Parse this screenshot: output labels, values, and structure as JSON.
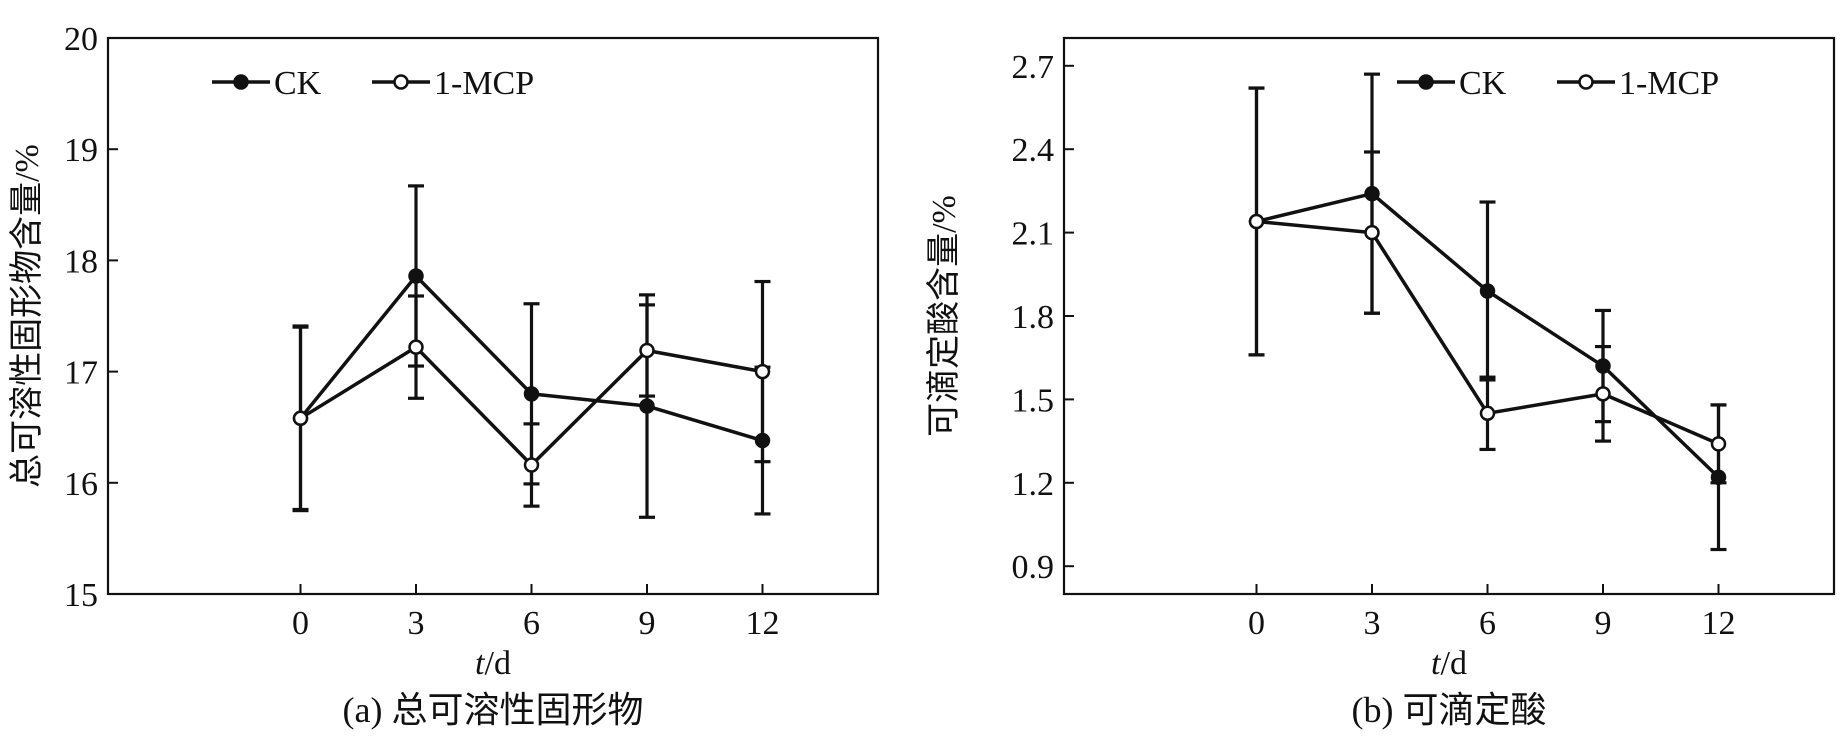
{
  "chart_data": [
    {
      "type": "line",
      "caption": "(a) 总可溶性固形物",
      "xlabel_italic": "t",
      "xlabel_rest": "/d",
      "ylabel": "总可溶性固形物含量/%",
      "x": [
        0,
        3,
        6,
        9,
        12
      ],
      "xlim": [
        -5,
        15
      ],
      "xticks": [
        "0",
        "3",
        "6",
        "9",
        "12"
      ],
      "ylim": [
        15,
        20
      ],
      "yticks": [
        "15",
        "16",
        "17",
        "18",
        "19",
        "20"
      ],
      "legend_position": "top-left",
      "series": [
        {
          "name": "CK",
          "marker": "filled",
          "values": [
            16.58,
            17.86,
            16.8,
            16.69,
            16.38
          ],
          "errors": [
            0.83,
            0.81,
            0.81,
            1.0,
            0.66
          ]
        },
        {
          "name": "1-MCP",
          "marker": "open",
          "values": [
            16.58,
            17.22,
            16.16,
            17.19,
            17.0
          ],
          "errors": [
            0.82,
            0.46,
            0.37,
            0.41,
            0.81
          ]
        }
      ]
    },
    {
      "type": "line",
      "caption": "(b) 可滴定酸",
      "xlabel_italic": "t",
      "xlabel_rest": "/d",
      "ylabel": "可滴定酸含量/%",
      "x": [
        0,
        3,
        6,
        9,
        12
      ],
      "xlim": [
        -5,
        15
      ],
      "xticks": [
        "0",
        "3",
        "6",
        "9",
        "12"
      ],
      "ylim": [
        0.8,
        2.8
      ],
      "yticks": [
        "0.9",
        "1.2",
        "1.5",
        "1.8",
        "2.1",
        "2.4",
        "2.7"
      ],
      "legend_position": "top-right",
      "series": [
        {
          "name": "CK",
          "marker": "filled",
          "values": [
            2.14,
            2.24,
            1.89,
            1.62,
            1.22
          ],
          "errors": [
            0.48,
            0.43,
            0.32,
            0.2,
            0.26
          ]
        },
        {
          "name": "1-MCP",
          "marker": "open",
          "values": [
            2.14,
            2.1,
            1.45,
            1.52,
            1.34
          ],
          "errors": [
            0.48,
            0.29,
            0.13,
            0.17,
            0.14
          ]
        }
      ]
    }
  ]
}
